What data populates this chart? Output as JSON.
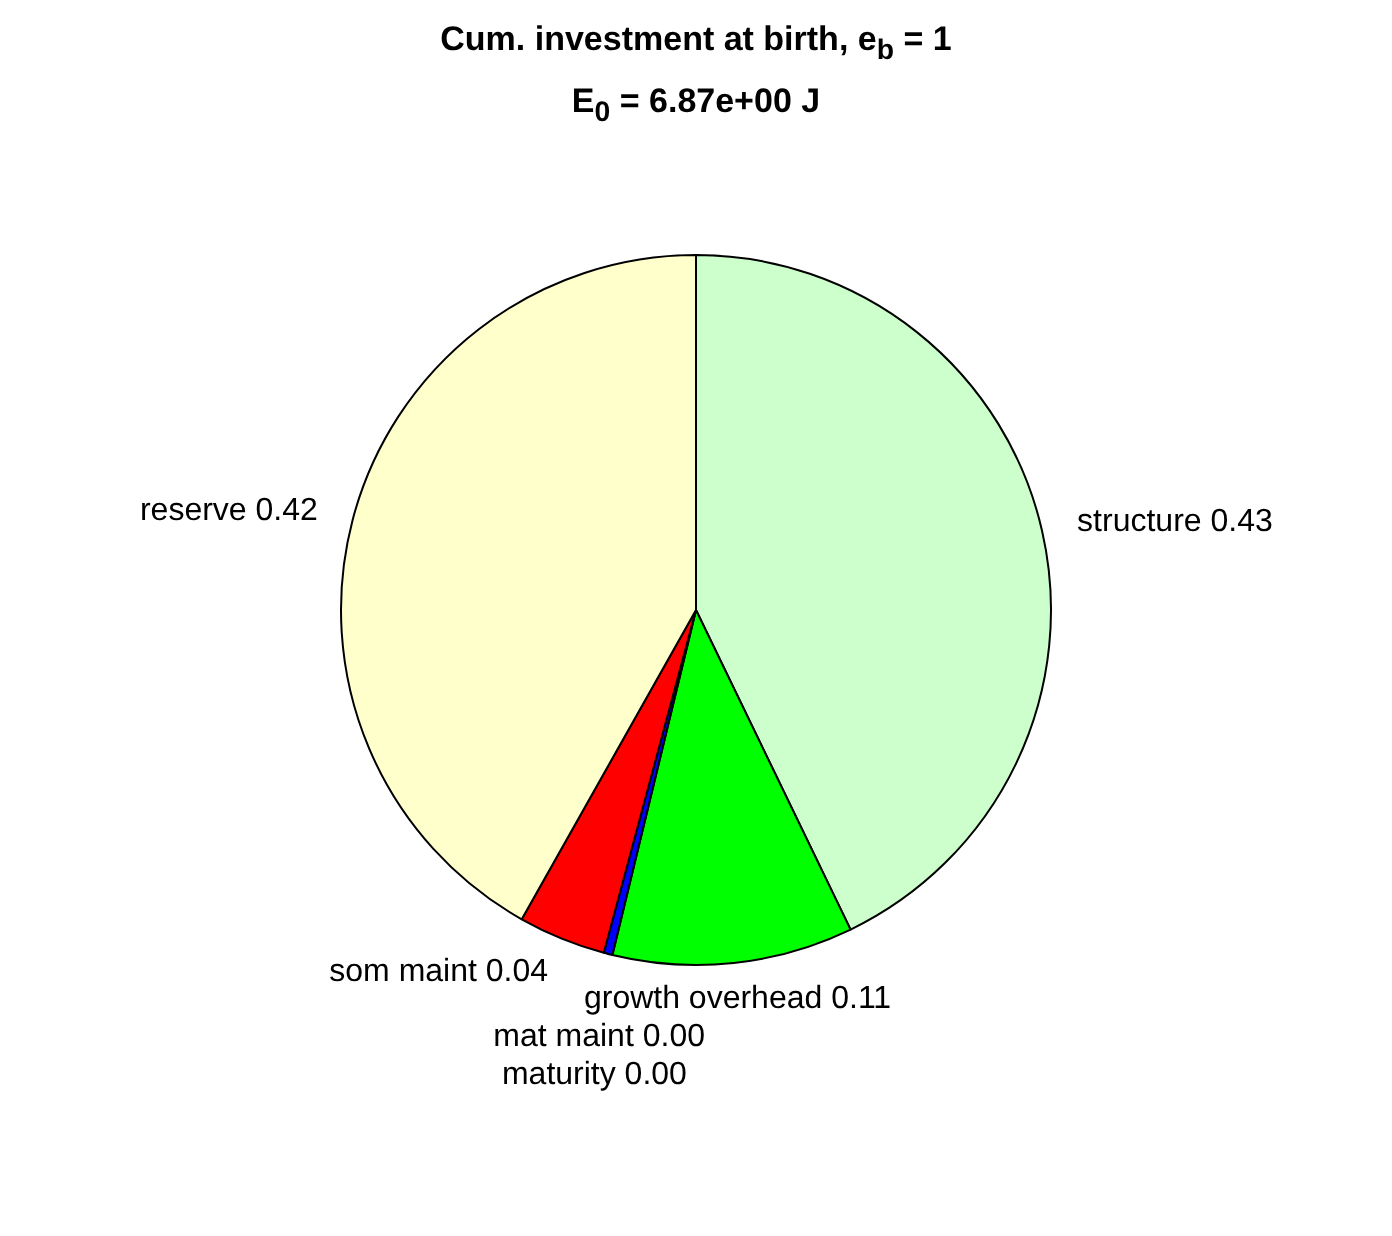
{
  "chart_data": {
    "type": "pie",
    "title": "Cum. investment at birth, e$_{b}$ = 1",
    "subtitle": "E$_{0}$ = 6.87e+00 J",
    "categories": [
      "structure",
      "growth overhead",
      "mat maint",
      "maturity",
      "som maint",
      "reserve"
    ],
    "values": [
      0.43,
      0.11,
      0.004,
      0,
      0.04,
      0.42
    ],
    "value_labels": [
      "0.43",
      "0.11",
      "0.00",
      "0.00",
      "0.04",
      "0.42"
    ],
    "colors": [
      "#ccffcc",
      "#00ff00",
      "#0000ff",
      "#ffffff",
      "#ff0000",
      "#ffffcc"
    ],
    "legend": false
  }
}
